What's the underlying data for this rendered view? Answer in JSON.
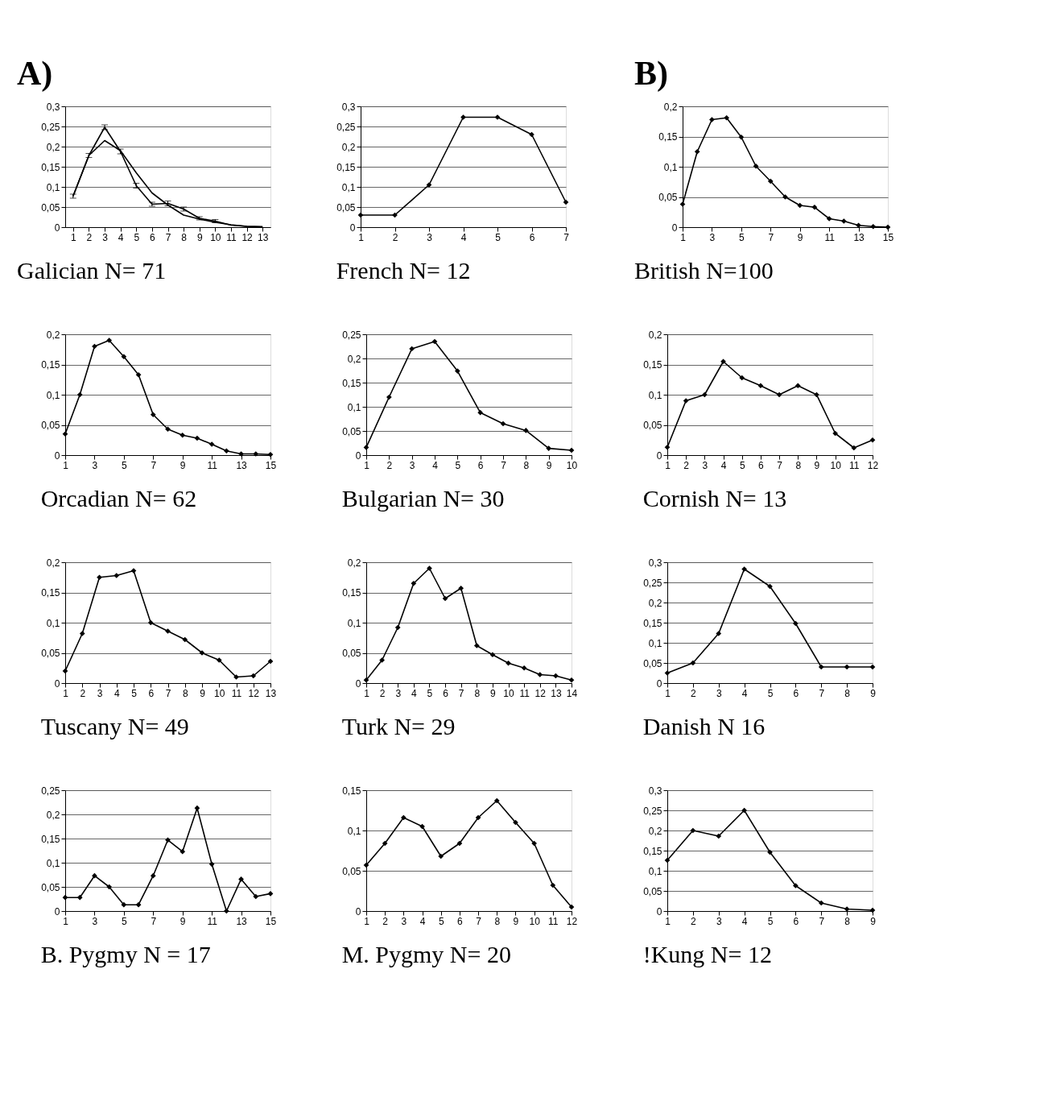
{
  "chart_data": [
    {
      "type": "line",
      "title": "Galician N= 71",
      "annotations": [
        "A)"
      ],
      "x": [
        1,
        2,
        3,
        4,
        5,
        6,
        7,
        8,
        9,
        10,
        11,
        12,
        13
      ],
      "xlim": [
        0.5,
        13.5
      ],
      "xticks": [
        1,
        2,
        3,
        4,
        5,
        6,
        7,
        8,
        9,
        10,
        11,
        12,
        13
      ],
      "ylim": [
        0,
        0.3
      ],
      "yticks": [
        0,
        {
          "value": 0.05,
          "label": "0,05"
        },
        {
          "value": 0.1,
          "label": "0,1"
        },
        {
          "value": 0.15,
          "label": "0,15"
        },
        {
          "value": 0.2,
          "label": "0,2"
        },
        {
          "value": 0.25,
          "label": "0,25"
        },
        {
          "value": 0.3,
          "label": "0,3"
        }
      ],
      "grid": "y",
      "series": [
        {
          "color": "#000000",
          "marker": "none",
          "values": [
            0.077,
            0.178,
            0.248,
            0.188,
            0.103,
            0.057,
            0.059,
            0.045,
            0.022,
            0.015,
            0.005,
            0.002,
            0.001
          ],
          "errors": [
            0.005,
            0.005,
            0.006,
            0.006,
            0.006,
            0.005,
            0.006,
            0.005,
            0.004,
            0.004,
            null,
            null,
            null
          ]
        },
        {
          "color": "#000000",
          "marker": "none",
          "values": [
            0.077,
            0.178,
            0.215,
            0.19,
            0.135,
            0.085,
            0.055,
            0.03,
            0.02,
            0.012,
            0.006,
            0.002,
            0.001
          ]
        }
      ]
    },
    {
      "type": "line",
      "title": "French N= 12",
      "x": [
        1,
        2,
        3,
        4,
        5,
        6,
        7
      ],
      "xlim": [
        1,
        7
      ],
      "xticks": [
        1,
        2,
        3,
        4,
        5,
        6,
        7
      ],
      "ylim": [
        0,
        0.3
      ],
      "yticks": [
        0,
        {
          "value": 0.05,
          "label": "0,05"
        },
        {
          "value": 0.1,
          "label": "0,1"
        },
        {
          "value": 0.15,
          "label": "0,15"
        },
        {
          "value": 0.2,
          "label": "0,2"
        },
        {
          "value": 0.25,
          "label": "0,25"
        },
        {
          "value": 0.3,
          "label": "0,3"
        }
      ],
      "grid": "y",
      "marker": "diamond",
      "series": [
        {
          "color": "#000000",
          "values": [
            0.03,
            0.03,
            0.105,
            0.273,
            0.273,
            0.23,
            0.062
          ]
        }
      ]
    },
    {
      "type": "line",
      "title": "British N=100",
      "annotations": [
        "B)"
      ],
      "x": [
        1,
        2,
        3,
        4,
        5,
        6,
        7,
        8,
        9,
        10,
        11,
        12,
        13,
        14,
        15
      ],
      "xlim": [
        1,
        15
      ],
      "xticks": [
        1,
        3,
        5,
        7,
        9,
        11,
        13,
        15
      ],
      "ylim": [
        0,
        0.2
      ],
      "yticks": [
        0,
        {
          "value": 0.05,
          "label": "0,05"
        },
        {
          "value": 0.1,
          "label": "0,1"
        },
        {
          "value": 0.15,
          "label": "0,15"
        },
        {
          "value": 0.2,
          "label": "0,2"
        }
      ],
      "grid": "y",
      "marker": "diamond",
      "series": [
        {
          "color": "#000000",
          "values": [
            0.038,
            0.125,
            0.178,
            0.181,
            0.149,
            0.101,
            0.076,
            0.05,
            0.036,
            0.033,
            0.014,
            0.01,
            0.003,
            0.001,
            0
          ]
        }
      ]
    },
    {
      "type": "line",
      "title": "Orcadian N= 62",
      "x": [
        1,
        2,
        3,
        4,
        5,
        6,
        7,
        8,
        9,
        10,
        11,
        12,
        13,
        14,
        15
      ],
      "xlim": [
        1,
        15
      ],
      "xticks": [
        1,
        3,
        5,
        7,
        9,
        11,
        13,
        15
      ],
      "ylim": [
        0,
        0.2
      ],
      "yticks": [
        0,
        {
          "value": 0.05,
          "label": "0,05"
        },
        {
          "value": 0.1,
          "label": "0,1"
        },
        {
          "value": 0.15,
          "label": "0,15"
        },
        {
          "value": 0.2,
          "label": "0,2"
        }
      ],
      "grid": "y",
      "marker": "diamond",
      "series": [
        {
          "color": "#000000",
          "values": [
            0.035,
            0.1,
            0.18,
            0.19,
            0.163,
            0.133,
            0.067,
            0.043,
            0.033,
            0.028,
            0.018,
            0.007,
            0.002,
            0.002,
            0.001
          ]
        }
      ]
    },
    {
      "type": "line",
      "title": "Bulgarian N= 30",
      "x": [
        1,
        2,
        3,
        4,
        5,
        6,
        7,
        8,
        9,
        10
      ],
      "xlim": [
        1,
        10
      ],
      "xticks": [
        1,
        2,
        3,
        4,
        5,
        6,
        7,
        8,
        9,
        10
      ],
      "ylim": [
        0,
        0.25
      ],
      "yticks": [
        0,
        {
          "value": 0.05,
          "label": "0,05"
        },
        {
          "value": 0.1,
          "label": "0,1"
        },
        {
          "value": 0.15,
          "label": "0,15"
        },
        {
          "value": 0.2,
          "label": "0,2"
        },
        {
          "value": 0.25,
          "label": "0,25"
        }
      ],
      "grid": "y",
      "marker": "diamond",
      "series": [
        {
          "color": "#000000",
          "values": [
            0.016,
            0.12,
            0.22,
            0.235,
            0.174,
            0.088,
            0.065,
            0.051,
            0.014,
            0.01
          ]
        }
      ]
    },
    {
      "type": "line",
      "title": "Cornish N= 13",
      "x": [
        1,
        2,
        3,
        4,
        5,
        6,
        7,
        8,
        9,
        10,
        11,
        12
      ],
      "xlim": [
        1,
        12
      ],
      "xticks": [
        1,
        2,
        3,
        4,
        5,
        6,
        7,
        8,
        9,
        10,
        11,
        12
      ],
      "ylim": [
        0,
        0.2
      ],
      "yticks": [
        0,
        {
          "value": 0.05,
          "label": "0,05"
        },
        {
          "value": 0.1,
          "label": "0,1"
        },
        {
          "value": 0.15,
          "label": "0,15"
        },
        {
          "value": 0.2,
          "label": "0,2"
        }
      ],
      "grid": "y",
      "marker": "diamond",
      "series": [
        {
          "color": "#000000",
          "values": [
            0.013,
            0.09,
            0.1,
            0.155,
            0.128,
            0.115,
            0.1,
            0.115,
            0.1,
            0.036,
            0.012,
            0.025
          ]
        }
      ]
    },
    {
      "type": "line",
      "title": "Tuscany N= 49",
      "x": [
        1,
        2,
        3,
        4,
        5,
        6,
        7,
        8,
        9,
        10,
        11,
        12,
        13
      ],
      "xlim": [
        1,
        13
      ],
      "xticks": [
        1,
        2,
        3,
        4,
        5,
        6,
        7,
        8,
        9,
        10,
        11,
        12,
        13
      ],
      "ylim": [
        0,
        0.2
      ],
      "yticks": [
        0,
        {
          "value": 0.05,
          "label": "0,05"
        },
        {
          "value": 0.1,
          "label": "0,1"
        },
        {
          "value": 0.15,
          "label": "0,15"
        },
        {
          "value": 0.2,
          "label": "0,2"
        }
      ],
      "grid": "y",
      "marker": "diamond",
      "series": [
        {
          "color": "#000000",
          "values": [
            0.02,
            0.082,
            0.175,
            0.178,
            0.186,
            0.1,
            0.086,
            0.072,
            0.05,
            0.038,
            0.01,
            0.012,
            0.036
          ]
        }
      ]
    },
    {
      "type": "line",
      "title": "Turk N= 29",
      "x": [
        1,
        2,
        3,
        4,
        5,
        6,
        7,
        8,
        9,
        10,
        11,
        12,
        13,
        14
      ],
      "xlim": [
        1,
        14
      ],
      "xticks": [
        1,
        2,
        3,
        4,
        5,
        6,
        7,
        8,
        9,
        10,
        11,
        12,
        13,
        14
      ],
      "ylim": [
        0,
        0.2
      ],
      "yticks": [
        0,
        {
          "value": 0.05,
          "label": "0,05"
        },
        {
          "value": 0.1,
          "label": "0,1"
        },
        {
          "value": 0.15,
          "label": "0,15"
        },
        {
          "value": 0.2,
          "label": "0,2"
        }
      ],
      "grid": "y",
      "marker": "diamond",
      "series": [
        {
          "color": "#000000",
          "values": [
            0.005,
            0.038,
            0.092,
            0.165,
            0.19,
            0.14,
            0.157,
            0.062,
            0.047,
            0.033,
            0.025,
            0.014,
            0.012,
            0.005
          ]
        }
      ]
    },
    {
      "type": "line",
      "title": "Danish N 16",
      "x": [
        1,
        2,
        3,
        4,
        5,
        6,
        7,
        8,
        9
      ],
      "xlim": [
        1,
        9
      ],
      "xticks": [
        1,
        2,
        3,
        4,
        5,
        6,
        7,
        8,
        9
      ],
      "ylim": [
        0,
        0.3
      ],
      "yticks": [
        0,
        {
          "value": 0.05,
          "label": "0,05"
        },
        {
          "value": 0.1,
          "label": "0,1"
        },
        {
          "value": 0.15,
          "label": "0,15"
        },
        {
          "value": 0.2,
          "label": "0,2"
        },
        {
          "value": 0.25,
          "label": "0,25"
        },
        {
          "value": 0.3,
          "label": "0,3"
        }
      ],
      "grid": "y",
      "marker": "diamond",
      "series": [
        {
          "color": "#000000",
          "values": [
            0.025,
            0.05,
            0.123,
            0.283,
            0.24,
            0.148,
            0.04,
            0.04,
            0.04
          ]
        }
      ]
    },
    {
      "type": "line",
      "title": "B. Pygmy N = 17",
      "x": [
        1,
        2,
        3,
        4,
        5,
        6,
        7,
        8,
        9,
        10,
        11,
        12,
        13,
        14,
        15
      ],
      "xlim": [
        1,
        15
      ],
      "xticks": [
        1,
        3,
        5,
        7,
        9,
        11,
        13,
        15
      ],
      "ylim": [
        0,
        0.25
      ],
      "yticks": [
        0,
        {
          "value": 0.05,
          "label": "0,05"
        },
        {
          "value": 0.1,
          "label": "0,1"
        },
        {
          "value": 0.15,
          "label": "0,15"
        },
        {
          "value": 0.2,
          "label": "0,2"
        },
        {
          "value": 0.25,
          "label": "0,25"
        }
      ],
      "grid": "y",
      "marker": "diamond",
      "series": [
        {
          "color": "#000000",
          "values": [
            0.028,
            0.028,
            0.073,
            0.05,
            0.013,
            0.013,
            0.073,
            0.147,
            0.123,
            0.213,
            0.097,
            0,
            0.066,
            0.03,
            0.036
          ]
        }
      ]
    },
    {
      "type": "line",
      "title": "M. Pygmy N= 20",
      "x": [
        1,
        2,
        3,
        4,
        5,
        6,
        7,
        8,
        9,
        10,
        11,
        12
      ],
      "xlim": [
        1,
        12
      ],
      "xticks": [
        1,
        2,
        3,
        4,
        5,
        6,
        7,
        8,
        9,
        10,
        11,
        12
      ],
      "ylim": [
        0,
        0.15
      ],
      "yticks": [
        0,
        {
          "value": 0.05,
          "label": "0,05"
        },
        {
          "value": 0.1,
          "label": "0,1"
        },
        {
          "value": 0.15,
          "label": "0,15"
        }
      ],
      "grid": "y",
      "marker": "diamond",
      "series": [
        {
          "color": "#000000",
          "values": [
            0.057,
            0.084,
            0.116,
            0.105,
            0.068,
            0.084,
            0.116,
            0.137,
            0.11,
            0.084,
            0.032,
            0.005
          ]
        }
      ]
    },
    {
      "type": "line",
      "title": "!Kung N= 12",
      "x": [
        1,
        2,
        3,
        4,
        5,
        6,
        7,
        8,
        9
      ],
      "xlim": [
        1,
        9
      ],
      "xticks": [
        1,
        2,
        3,
        4,
        5,
        6,
        7,
        8,
        9
      ],
      "ylim": [
        0,
        0.3
      ],
      "yticks": [
        0,
        {
          "value": 0.05,
          "label": "0,05"
        },
        {
          "value": 0.1,
          "label": "0,1"
        },
        {
          "value": 0.15,
          "label": "0,15"
        },
        {
          "value": 0.2,
          "label": "0,2"
        },
        {
          "value": 0.25,
          "label": "0,25"
        },
        {
          "value": 0.3,
          "label": "0,3"
        }
      ],
      "grid": "y",
      "marker": "diamond",
      "series": [
        {
          "color": "#000000",
          "values": [
            0.126,
            0.2,
            0.186,
            0.25,
            0.146,
            0.063,
            0.02,
            0.005,
            0.002
          ]
        }
      ]
    }
  ]
}
